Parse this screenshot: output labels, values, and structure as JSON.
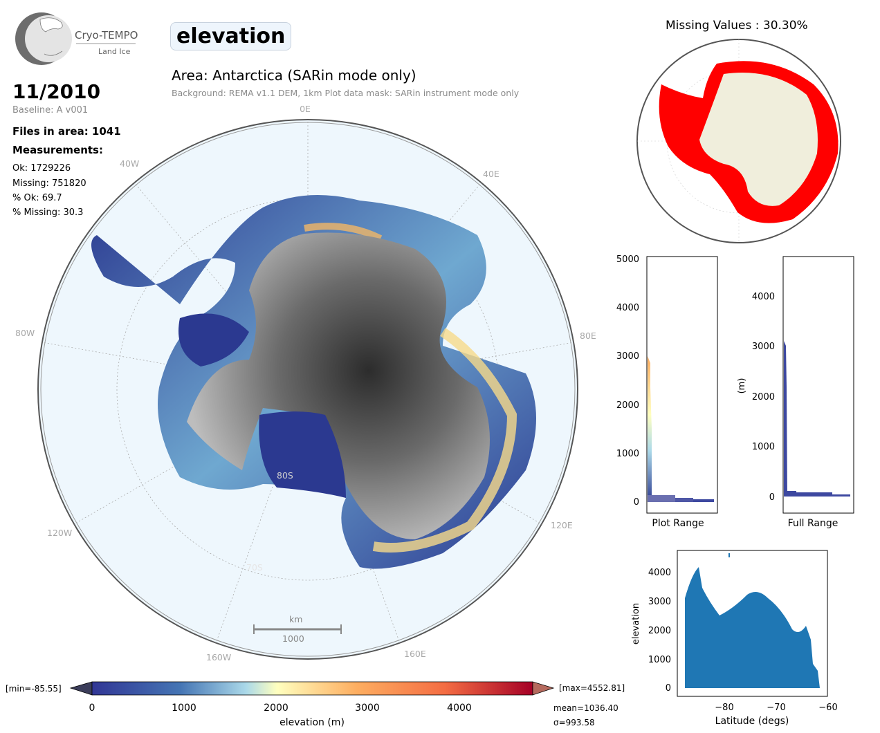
{
  "logo": {
    "name": "Cryo-TEMPO",
    "sub": "Land Ice"
  },
  "parameter": "elevation",
  "month": "11/2010",
  "baseline": "Baseline: A v001",
  "files_in_area": "Files in area: 1041",
  "measurements_title": "Measurements:",
  "stats": [
    "Ok: 1729226",
    "Missing: 751820",
    "% Ok: 69.7",
    "% Missing: 30.3"
  ],
  "area_title": "Area: Antarctica (SARin mode only)",
  "background_note": "Background: REMA v1.1 DEM, 1km   Plot data mask: SARin instrument mode only",
  "lon_labels": {
    "l0": "0E",
    "l40e": "40E",
    "l80e": "80E",
    "l120e": "120E",
    "l160e": "160E",
    "l160w": "160W",
    "l120w": "120W",
    "l80w": "80W",
    "l40w": "40W"
  },
  "lat_labels": {
    "l80s": "80S",
    "l70s": "70S"
  },
  "scale_bar": {
    "unit": "km",
    "value": "1000"
  },
  "missing_map_title": "Missing Values : 30.30%",
  "colorbar": {
    "min_label": "[min=-85.55]",
    "max_label": "[max=4552.81]",
    "ticks": [
      "0",
      "1000",
      "2000",
      "3000",
      "4000"
    ],
    "label": "elevation (m)",
    "mean": "mean=1036.40",
    "sigma": "σ=993.58"
  },
  "hist_plot_range": {
    "xlabel": "Plot Range",
    "yticks": [
      "0",
      "1000",
      "2000",
      "3000",
      "4000",
      "5000"
    ]
  },
  "hist_full_range": {
    "xlabel": "Full Range",
    "ylabel": "(m)",
    "yticks": [
      "0",
      "1000",
      "2000",
      "3000",
      "4000"
    ]
  },
  "scatter": {
    "xlabel": "Latitude (degs)",
    "ylabel": "elevation",
    "xticks": [
      "−80",
      "−70",
      "−60"
    ],
    "yticks": [
      "0",
      "1000",
      "2000",
      "3000",
      "4000"
    ]
  }
}
